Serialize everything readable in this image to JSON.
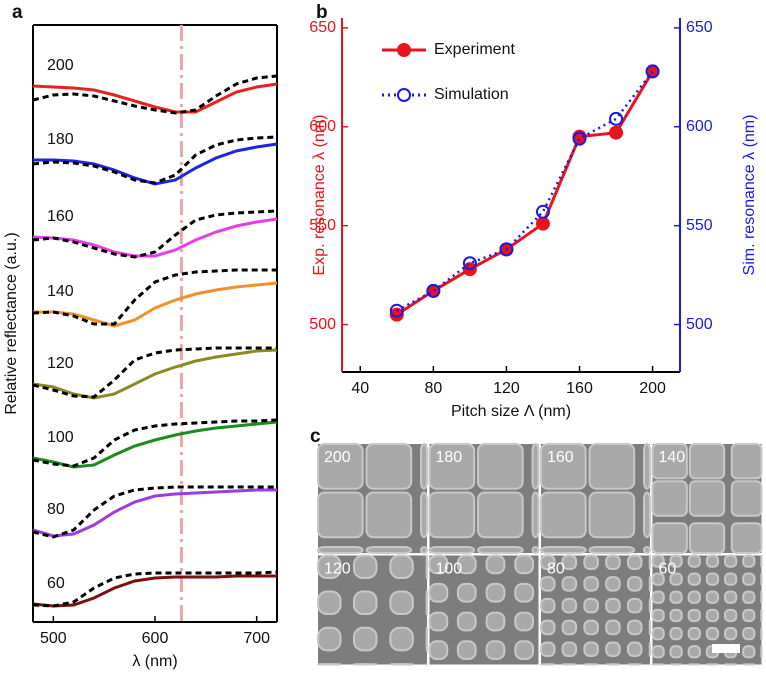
{
  "chart_data": [
    {
      "type": "line",
      "panel": "a",
      "xlabel": "λ (nm)",
      "ylabel": "Relative reflectance (a.u.)",
      "x": [
        480,
        500,
        520,
        540,
        560,
        580,
        600,
        620,
        640,
        660,
        680,
        700,
        720
      ],
      "xlim": [
        480,
        720
      ],
      "xticks": [
        500,
        600,
        700
      ],
      "ylim": [
        0,
        597
      ],
      "vline": 626,
      "vline_color": "#e8a8a8",
      "series": [
        {
          "name": "200",
          "color": "#e8211c",
          "values": [
            536,
            535,
            534,
            532,
            527,
            521,
            515,
            510,
            510,
            520,
            530,
            535,
            538
          ]
        },
        {
          "color": "#000000",
          "dash": true,
          "values": [
            522,
            527,
            528,
            526,
            521,
            516,
            512,
            509,
            512,
            526,
            538,
            544,
            546
          ]
        },
        {
          "name": "180",
          "color": "#1f24e0",
          "values": [
            462,
            462,
            461,
            458,
            452,
            444,
            438,
            442,
            454,
            464,
            471,
            475,
            478
          ]
        },
        {
          "color": "#000000",
          "dash": true,
          "values": [
            458,
            460,
            459,
            456,
            450,
            442,
            439,
            447,
            467,
            477,
            482,
            484,
            485
          ]
        },
        {
          "name": "160",
          "color": "#e83ee8",
          "values": [
            385,
            384,
            382,
            377,
            370,
            366,
            366,
            372,
            382,
            390,
            396,
            400,
            403
          ]
        },
        {
          "color": "#000000",
          "dash": true,
          "values": [
            382,
            384,
            380,
            374,
            368,
            365,
            370,
            387,
            402,
            407,
            409,
            410,
            411
          ]
        },
        {
          "name": "140",
          "color": "#f0902a",
          "values": [
            310,
            310,
            308,
            302,
            296,
            302,
            314,
            322,
            328,
            332,
            335,
            337,
            339
          ]
        },
        {
          "color": "#000000",
          "dash": true,
          "values": [
            309,
            310,
            306,
            298,
            298,
            322,
            340,
            347,
            350,
            351,
            352,
            352,
            352
          ]
        },
        {
          "name": "120",
          "color": "#8a8a25",
          "values": [
            238,
            235,
            228,
            224,
            228,
            238,
            248,
            255,
            261,
            265,
            268,
            271,
            272
          ]
        },
        {
          "color": "#000000",
          "dash": true,
          "values": [
            237,
            232,
            226,
            225,
            242,
            262,
            269,
            272,
            273,
            274,
            274,
            274,
            274
          ]
        },
        {
          "name": "100",
          "color": "#1f8a1f",
          "values": [
            164,
            160,
            155,
            157,
            167,
            176,
            182,
            187,
            191,
            194,
            196,
            198,
            200
          ]
        },
        {
          "color": "#000000",
          "dash": true,
          "values": [
            162,
            158,
            156,
            164,
            182,
            192,
            196,
            198,
            199,
            200,
            201,
            201,
            202
          ]
        },
        {
          "name": "80",
          "color": "#9b3de0",
          "values": [
            92,
            86,
            88,
            97,
            110,
            120,
            126,
            128,
            129,
            130,
            131,
            132,
            132
          ]
        },
        {
          "color": "#000000",
          "dash": true,
          "values": [
            90,
            85,
            92,
            112,
            126,
            132,
            134,
            135,
            135,
            135,
            135,
            135,
            135
          ]
        },
        {
          "name": "60",
          "color": "#7a1010",
          "values": [
            18,
            16,
            17,
            24,
            34,
            41,
            44,
            45,
            45,
            45,
            46,
            46,
            46
          ]
        },
        {
          "color": "#000000",
          "dash": true,
          "values": [
            17,
            16,
            20,
            34,
            44,
            48,
            49,
            49,
            49,
            49,
            49,
            49,
            50
          ]
        }
      ]
    },
    {
      "type": "line",
      "panel": "b",
      "xlabel": "Pitch size Λ (nm)",
      "ylabel": "Exp. resonance λ (nm)",
      "y2label": "Sim. resonance λ (nm)",
      "ycolor": "#e8141c",
      "y2color": "#1a1ae6",
      "legend": "top-left",
      "x": [
        60,
        80,
        100,
        120,
        140,
        160,
        180,
        200
      ],
      "xlim": [
        30,
        215
      ],
      "xticks": [
        40,
        80,
        120,
        160,
        200
      ],
      "ylim": [
        476,
        655
      ],
      "yticks": [
        500,
        550,
        600,
        650
      ],
      "y2lim": [
        476,
        655
      ],
      "y2ticks": [
        500,
        550,
        600,
        650
      ],
      "series": [
        {
          "name": "Experiment",
          "color": "#e8141c",
          "marker": "filled",
          "values": [
            505,
            517,
            528,
            538,
            551,
            595,
            597,
            628
          ]
        },
        {
          "name": "Simulation",
          "color": "#1a1ae6",
          "marker": "open",
          "dash": true,
          "axis": "y2",
          "values": [
            507,
            517,
            531,
            538,
            557,
            594,
            604,
            628
          ]
        }
      ]
    }
  ],
  "sem": {
    "panel": "c",
    "labels": [
      "200",
      "180",
      "160",
      "140",
      "120",
      "100",
      "80",
      "60"
    ]
  }
}
